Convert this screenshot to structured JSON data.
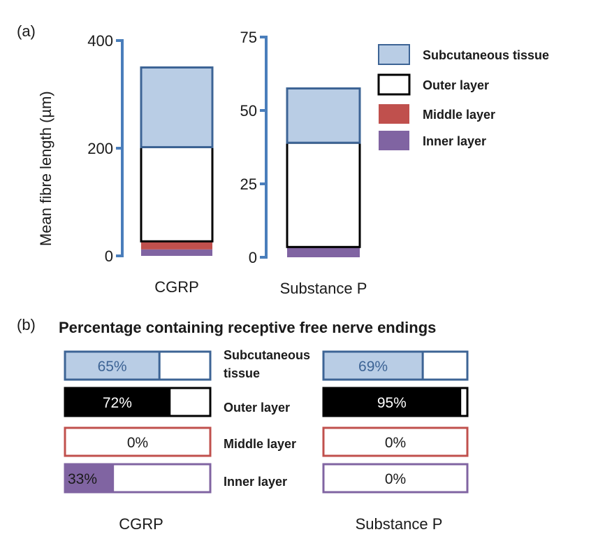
{
  "panel_a_label": "(a)",
  "panel_b_label": "(b)",
  "colors": {
    "axis": "#4a7ebb",
    "subcutaneous": "#b9cde5",
    "subcutaneous_border": "#3d6495",
    "outer": "#000000",
    "middle": "#c0504d",
    "inner": "#8064a2"
  },
  "chart_data": [
    {
      "type": "bar",
      "stacked": true,
      "category": "CGRP",
      "ylabel": "Mean fibre length (µm)",
      "ylim": [
        0,
        400
      ],
      "ticks": [
        {
          "v": 0,
          "label": "0"
        },
        {
          "v": 200,
          "label": "200"
        },
        {
          "v": 400,
          "label": "400"
        }
      ],
      "series": [
        {
          "name": "Inner layer",
          "value": 12
        },
        {
          "name": "Middle layer",
          "value": 15
        },
        {
          "name": "Outer layer",
          "value": 175
        },
        {
          "name": "Subcutaneous tissue",
          "value": 148
        }
      ]
    },
    {
      "type": "bar",
      "stacked": true,
      "category": "Substance P",
      "ylim": [
        0,
        75
      ],
      "ticks": [
        {
          "v": 0,
          "label": "0"
        },
        {
          "v": 25,
          "label": "25"
        },
        {
          "v": 50,
          "label": "50"
        },
        {
          "v": 75,
          "label": "75"
        }
      ],
      "series": [
        {
          "name": "Inner layer",
          "value": 3.5
        },
        {
          "name": "Middle layer",
          "value": 0
        },
        {
          "name": "Outer layer",
          "value": 35.5
        },
        {
          "name": "Subcutaneous tissue",
          "value": 18.5
        }
      ]
    },
    {
      "type": "bar",
      "title": "Percentage containing receptive free nerve endings",
      "row_labels": [
        "Subcutaneous tissue",
        "Outer layer",
        "Middle layer",
        "Inner layer"
      ],
      "groups": [
        {
          "name": "CGRP",
          "values": [
            65,
            72,
            0,
            33
          ],
          "labels": [
            "65%",
            "72%",
            "0%",
            "33%"
          ]
        },
        {
          "name": "Substance P",
          "values": [
            69,
            95,
            0,
            0
          ],
          "labels": [
            "69%",
            "95%",
            "0%",
            "0%"
          ]
        }
      ]
    }
  ],
  "legend": [
    {
      "label": "Subcutaneous tissue",
      "key": "subcutaneous"
    },
    {
      "label": "Outer layer",
      "key": "outer"
    },
    {
      "label": "Middle layer",
      "key": "middle"
    },
    {
      "label": "Inner layer",
      "key": "inner"
    }
  ],
  "row_label_lines": [
    [
      "Subcutaneous",
      "tissue"
    ],
    [
      "Outer layer"
    ],
    [
      "Middle layer"
    ],
    [
      "Inner layer"
    ]
  ]
}
